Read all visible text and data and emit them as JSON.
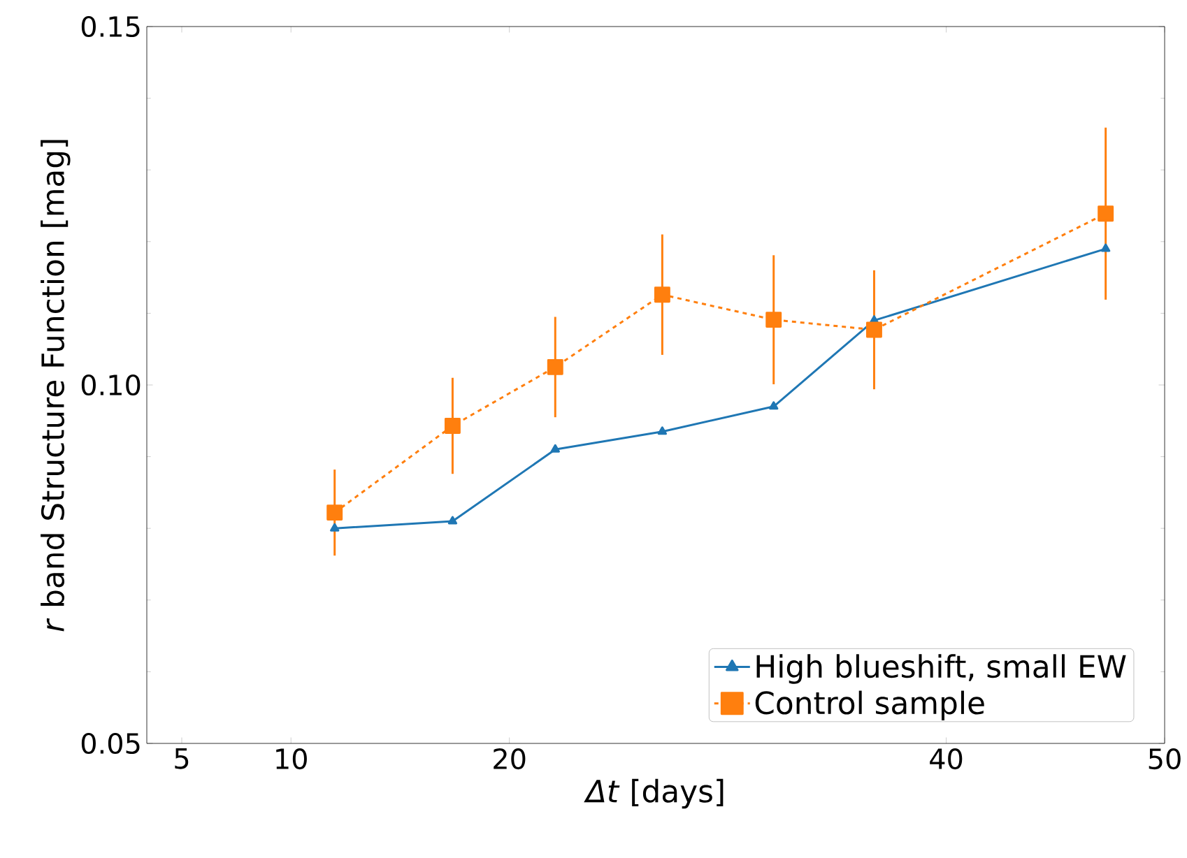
{
  "chart_data": {
    "type": "line",
    "xlabel": "*Δt* [days]",
    "ylabel": "*r* band Structure Function [mag]",
    "xlim": [
      3.4,
      50
    ],
    "ylim": [
      0.05,
      0.15
    ],
    "xticks": [
      5,
      10,
      20,
      40,
      50
    ],
    "yticks": [
      {
        "value": 0.05,
        "label": "0.05"
      },
      {
        "value": 0.1,
        "label": "0.10"
      },
      {
        "value": 0.15,
        "label": "0.15"
      }
    ],
    "grid": false,
    "legend": "bottom right",
    "series": [
      {
        "name": "High blueshift,  small EW",
        "color": "#1f77b4",
        "marker": "triangle",
        "line_style": "solid",
        "x": [
          12,
          17.4,
          22.1,
          27.0,
          32.1,
          36.7,
          47.3
        ],
        "values": [
          0.08,
          0.081,
          0.091,
          0.0935,
          0.097,
          0.109,
          0.119
        ]
      },
      {
        "name": "Control sample",
        "color": "#ff7f0e",
        "marker": "square",
        "line_style": "dashed",
        "x": [
          12,
          17.4,
          22.1,
          27.0,
          32.1,
          36.7,
          47.3
        ],
        "values": [
          0.0822,
          0.0943,
          0.1025,
          0.1126,
          0.1091,
          0.1077,
          0.1239
        ],
        "errors": [
          0.006,
          0.0067,
          0.007,
          0.0084,
          0.009,
          0.0083,
          0.012
        ]
      }
    ]
  }
}
